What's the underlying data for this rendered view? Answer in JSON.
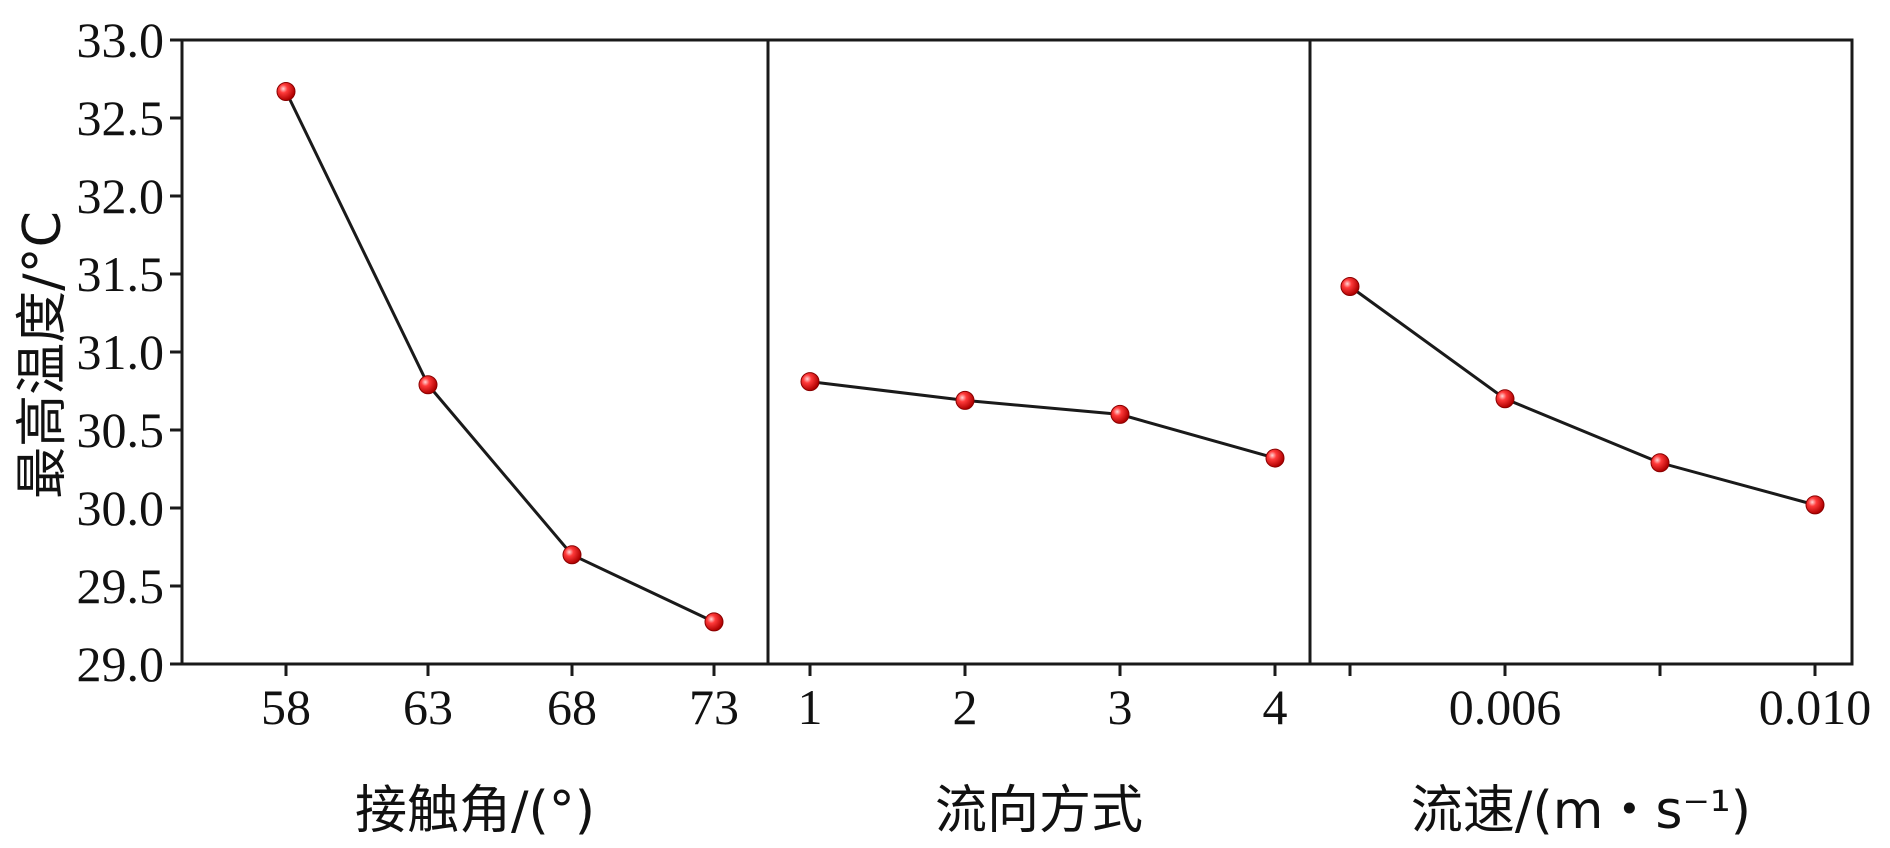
{
  "chart_data": {
    "type": "line",
    "ylabel": "最高温度/°C",
    "ylim": [
      29.0,
      33.0
    ],
    "yticks": [
      "29.0",
      "29.5",
      "30.0",
      "30.5",
      "31.0",
      "31.5",
      "32.0",
      "32.5",
      "33.0"
    ],
    "grid": false,
    "line_color": "#1a1a1a",
    "marker_color": "#e02020",
    "panels": [
      {
        "xlabel": "接触角/(°)",
        "x": [
          58,
          63,
          68,
          73
        ],
        "xticks": [
          "58",
          "63",
          "68",
          "73"
        ],
        "values": [
          32.67,
          30.79,
          29.7,
          29.27
        ]
      },
      {
        "xlabel": "流向方式",
        "x": [
          1,
          2,
          3,
          4
        ],
        "xticks": [
          "1",
          "2",
          "3",
          "4"
        ],
        "values": [
          30.81,
          30.69,
          30.6,
          30.32
        ]
      },
      {
        "xlabel": "流速/(m・s⁻¹)",
        "x": [
          0.004,
          0.006,
          0.008,
          0.01
        ],
        "xticks": [
          "",
          "0.006",
          "",
          "0.010"
        ],
        "values": [
          31.42,
          30.7,
          30.29,
          30.02
        ]
      }
    ]
  }
}
